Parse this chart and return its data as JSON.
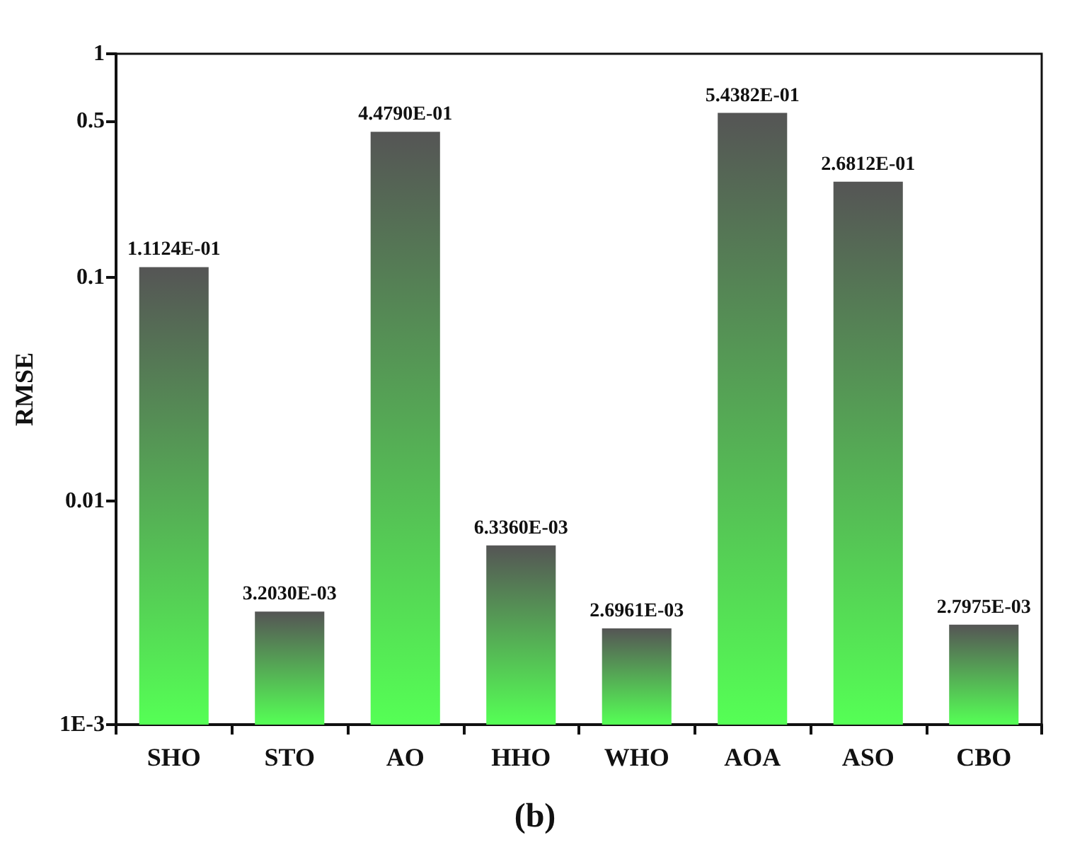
{
  "chart_data": {
    "type": "bar",
    "title": "(b)",
    "ylabel": "RMSE",
    "categories": [
      "SHO",
      "STO",
      "AO",
      "HHO",
      "WHO",
      "AOA",
      "ASO",
      "CBO"
    ],
    "values": [
      0.11124,
      0.003203,
      0.4479,
      0.006336,
      0.0026961,
      0.54382,
      0.26812,
      0.0027975
    ],
    "value_labels": [
      "1.1124E-01",
      "3.2030E-03",
      "4.4790E-01",
      "6.3360E-03",
      "2.6961E-03",
      "5.4382E-01",
      "2.6812E-01",
      "2.7975E-03"
    ],
    "color": "#55ff55",
    "log": true,
    "ylim": [
      0.001,
      1
    ],
    "yticks": [
      {
        "value": 0.001,
        "label": "1E-3"
      },
      0.01,
      0.1,
      0.5,
      1
    ],
    "grid": false
  }
}
